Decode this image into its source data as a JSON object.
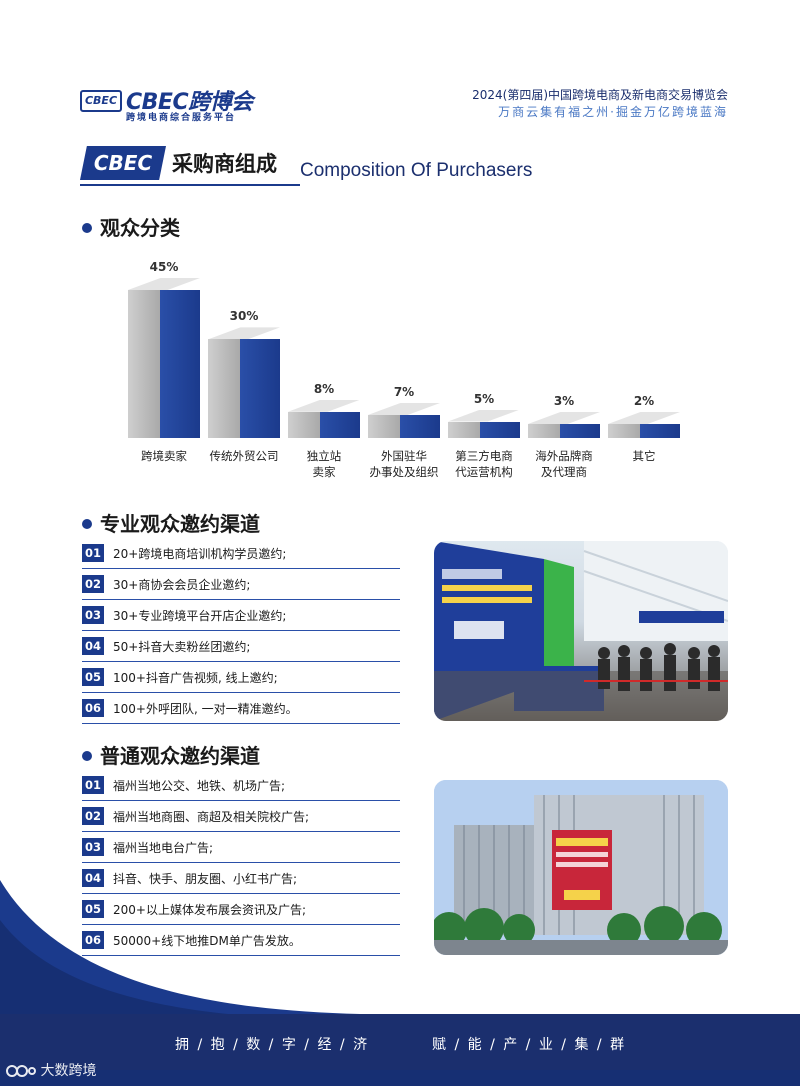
{
  "header": {
    "logo_mark": "CBEC",
    "logo_text": "CBEC跨博会",
    "logo_sub": "跨境电商综合服务平台",
    "expo_title": "2024(第四届)中国跨境电商及新电商交易博览会",
    "expo_slogan": "万商云集有福之州·掘金万亿跨境蓝海"
  },
  "section": {
    "badge": "CBEC",
    "title_cn": "采购商组成",
    "title_en": "Composition Of Purchasers"
  },
  "audience": {
    "heading": "观众分类"
  },
  "chart_data": {
    "type": "bar",
    "categories": [
      "跨境卖家",
      "传统外贸公司",
      "独立站\n卖家",
      "外国驻华\n办事处及组织",
      "第三方电商\n代运营机构",
      "海外品牌商\n及代理商",
      "其它"
    ],
    "values": [
      45,
      30,
      8,
      7,
      5,
      3,
      2
    ],
    "value_labels": [
      "45%",
      "30%",
      "8%",
      "7%",
      "5%",
      "3%",
      "2%"
    ],
    "colors": {
      "grey": "#b8b8b8",
      "blue": "#1b3a8c"
    }
  },
  "pro_channels": {
    "heading": "专业观众邀约渠道",
    "items": [
      {
        "num": "01",
        "text": "20+跨境电商培训机构学员邀约;"
      },
      {
        "num": "02",
        "text": "30+商协会会员企业邀约;"
      },
      {
        "num": "03",
        "text": "30+专业跨境平台开店企业邀约;"
      },
      {
        "num": "04",
        "text": "50+抖音大卖粉丝团邀约;"
      },
      {
        "num": "05",
        "text": "100+抖音广告视频, 线上邀约;"
      },
      {
        "num": "06",
        "text": "100+外呼团队, 一对一精准邀约。"
      }
    ]
  },
  "public_channels": {
    "heading": "普通观众邀约渠道",
    "items": [
      {
        "num": "01",
        "text": "福州当地公交、地铁、机场广告;"
      },
      {
        "num": "02",
        "text": "福州当地商圈、商超及相关院校广告;"
      },
      {
        "num": "03",
        "text": "福州当地电台广告;"
      },
      {
        "num": "04",
        "text": "抖音、快手、朋友圈、小红书广告;"
      },
      {
        "num": "05",
        "text": "200+以上媒体发布展会资讯及广告;"
      },
      {
        "num": "06",
        "text": "50000+线下地推DM单广告发放。"
      }
    ]
  },
  "footer": {
    "left": "拥 / 抱 / 数 / 字 / 经 / 济",
    "right": "赋 / 能 / 产 / 业 / 集 / 群",
    "watermark": "大数跨境"
  },
  "colors": {
    "primary": "#1b3a8c",
    "footer": "#1b2f6e"
  }
}
